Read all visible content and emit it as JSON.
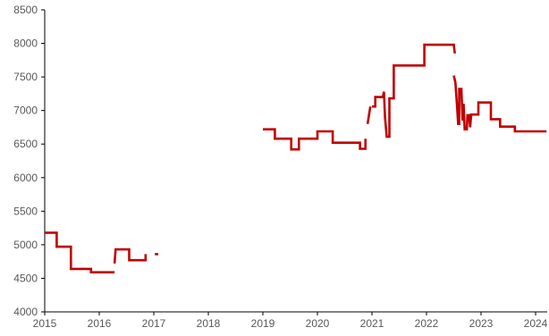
{
  "chart_data": {
    "type": "line",
    "title": "",
    "xlabel": "",
    "ylabel": "",
    "x_axis": {
      "type": "time",
      "min": 2015,
      "max": 2024.25,
      "ticks": [
        2015,
        2016,
        2017,
        2018,
        2019,
        2020,
        2021,
        2022,
        2023,
        2024
      ],
      "tick_labels": [
        "2015",
        "2016",
        "2017",
        "2018",
        "2019",
        "2020",
        "2021",
        "2022",
        "2023",
        "2024"
      ]
    },
    "y_axis": {
      "min": 4000,
      "max": 8500,
      "ticks": [
        4000,
        4500,
        5000,
        5500,
        6000,
        6500,
        7000,
        7500,
        8000,
        8500
      ],
      "tick_labels": [
        "4000",
        "4500",
        "5000",
        "5500",
        "6000",
        "6500",
        "7000",
        "7500",
        "8000",
        "8500"
      ]
    },
    "grid": false,
    "legend": "none",
    "series": [
      {
        "color": "#c00000",
        "segments": [
          [
            [
              2015.0,
              5180
            ],
            [
              2015.22,
              5180
            ],
            [
              2015.22,
              4970
            ],
            [
              2015.48,
              4970
            ],
            [
              2015.48,
              4640
            ],
            [
              2015.85,
              4640
            ],
            [
              2015.85,
              4590
            ],
            [
              2016.28,
              4590
            ]
          ],
          [
            [
              2016.28,
              4720
            ],
            [
              2016.3,
              4930
            ],
            [
              2016.55,
              4930
            ],
            [
              2016.55,
              4770
            ],
            [
              2016.85,
              4770
            ],
            [
              2016.85,
              4860
            ]
          ],
          [
            [
              2017.02,
              4860
            ],
            [
              2017.08,
              4860
            ]
          ],
          [
            [
              2019.0,
              6720
            ],
            [
              2019.22,
              6720
            ],
            [
              2019.22,
              6580
            ],
            [
              2019.52,
              6580
            ],
            [
              2019.52,
              6420
            ],
            [
              2019.66,
              6420
            ],
            [
              2019.66,
              6580
            ],
            [
              2020.0,
              6580
            ],
            [
              2020.0,
              6690
            ],
            [
              2020.28,
              6690
            ],
            [
              2020.28,
              6520
            ],
            [
              2020.78,
              6520
            ],
            [
              2020.78,
              6430
            ],
            [
              2020.88,
              6430
            ],
            [
              2020.88,
              6580
            ]
          ],
          [
            [
              2020.92,
              6800
            ],
            [
              2020.97,
              7060
            ]
          ],
          [
            [
              2021.0,
              7060
            ],
            [
              2021.06,
              7060
            ],
            [
              2021.06,
              7200
            ],
            [
              2021.2,
              7200
            ],
            [
              2021.22,
              7280
            ],
            [
              2021.24,
              6900
            ],
            [
              2021.27,
              6610
            ],
            [
              2021.32,
              6610
            ],
            [
              2021.32,
              7180
            ],
            [
              2021.4,
              7180
            ],
            [
              2021.4,
              7670
            ],
            [
              2021.96,
              7670
            ],
            [
              2021.96,
              7980
            ],
            [
              2022.5,
              7980
            ],
            [
              2022.52,
              7850
            ]
          ],
          [
            [
              2022.5,
              7520
            ],
            [
              2022.53,
              7420
            ],
            [
              2022.56,
              7060
            ],
            [
              2022.58,
              6800
            ],
            [
              2022.6,
              6800
            ],
            [
              2022.6,
              7320
            ],
            [
              2022.64,
              7320
            ],
            [
              2022.66,
              6850
            ],
            [
              2022.68,
              7100
            ],
            [
              2022.7,
              6720
            ],
            [
              2022.74,
              6720
            ],
            [
              2022.75,
              6930
            ],
            [
              2022.78,
              6930
            ],
            [
              2022.8,
              6750
            ],
            [
              2022.82,
              6940
            ],
            [
              2022.95,
              6940
            ],
            [
              2022.95,
              7120
            ],
            [
              2023.18,
              7120
            ],
            [
              2023.18,
              6870
            ],
            [
              2023.35,
              6870
            ],
            [
              2023.35,
              6760
            ],
            [
              2023.62,
              6760
            ],
            [
              2023.62,
              6690
            ],
            [
              2024.2,
              6690
            ]
          ]
        ]
      }
    ]
  }
}
